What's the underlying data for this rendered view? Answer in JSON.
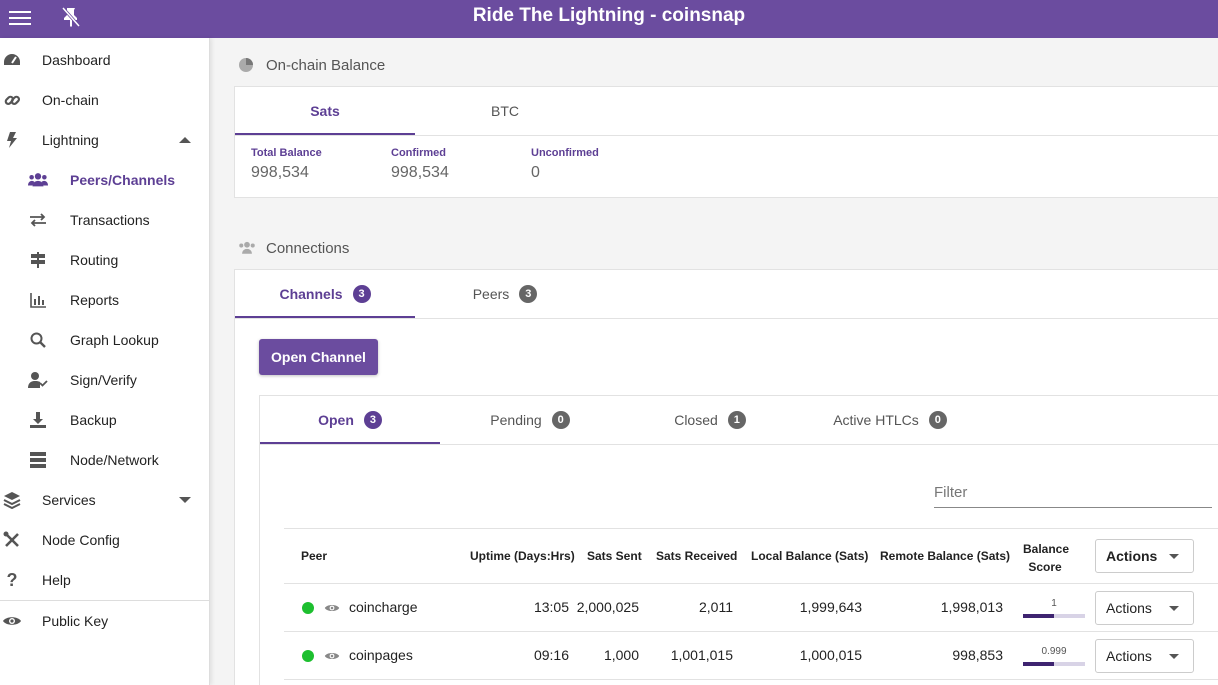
{
  "app": {
    "title": "Ride The Lightning - coinsnap"
  },
  "sidebar": {
    "items": [
      {
        "label": "Dashboard",
        "icon": "dashboard-icon"
      },
      {
        "label": "On-chain",
        "icon": "link-icon"
      },
      {
        "label": "Lightning",
        "icon": "bolt-icon"
      },
      {
        "label": "Peers/Channels",
        "icon": "users-icon"
      },
      {
        "label": "Transactions",
        "icon": "exchange-icon"
      },
      {
        "label": "Routing",
        "icon": "signpost-icon"
      },
      {
        "label": "Reports",
        "icon": "bar-chart-icon"
      },
      {
        "label": "Graph Lookup",
        "icon": "search-icon"
      },
      {
        "label": "Sign/Verify",
        "icon": "user-check-icon"
      },
      {
        "label": "Backup",
        "icon": "download-icon"
      },
      {
        "label": "Node/Network",
        "icon": "server-icon"
      },
      {
        "label": "Services",
        "icon": "layers-icon"
      },
      {
        "label": "Node Config",
        "icon": "tools-icon"
      },
      {
        "label": "Help",
        "icon": "question-icon"
      },
      {
        "label": "Public Key",
        "icon": "eye-icon"
      }
    ]
  },
  "onchain": {
    "heading": "On-chain Balance",
    "tabs": [
      "Sats",
      "BTC"
    ],
    "balances": [
      {
        "label": "Total Balance",
        "value": "998,534"
      },
      {
        "label": "Confirmed",
        "value": "998,534"
      },
      {
        "label": "Unconfirmed",
        "value": "0"
      }
    ]
  },
  "connections": {
    "heading": "Connections",
    "tabs": [
      {
        "label": "Channels",
        "count": "3"
      },
      {
        "label": "Peers",
        "count": "3"
      }
    ],
    "open_channel_label": "Open Channel",
    "channel_tabs": [
      {
        "label": "Open",
        "count": "3"
      },
      {
        "label": "Pending",
        "count": "0"
      },
      {
        "label": "Closed",
        "count": "1"
      },
      {
        "label": "Active HTLCs",
        "count": "0"
      }
    ],
    "filter_placeholder": "Filter",
    "columns": {
      "peer": "Peer",
      "uptime": "Uptime (Days:Hrs)",
      "sent": "Sats Sent",
      "received": "Sats Received",
      "local": "Local Balance (Sats)",
      "remote": "Remote Balance (Sats)",
      "score_line1": "Balance",
      "score_line2": "Score",
      "actions": "Actions"
    },
    "rows": [
      {
        "peer": "coincharge",
        "uptime": "13:05",
        "sent": "2,000,025",
        "received": "2,011",
        "local": "1,999,643",
        "remote": "1,998,013",
        "score": "1",
        "score_fraction": 0.5,
        "actions": "Actions"
      },
      {
        "peer": "coinpages",
        "uptime": "09:16",
        "sent": "1,000",
        "received": "1,001,015",
        "local": "1,000,015",
        "remote": "998,853",
        "score": "0.999",
        "score_fraction": 0.5,
        "actions": "Actions"
      }
    ]
  },
  "colors": {
    "brand": "#6b4c9f",
    "accent": "#5d3f94",
    "online": "#1dbf2f"
  }
}
